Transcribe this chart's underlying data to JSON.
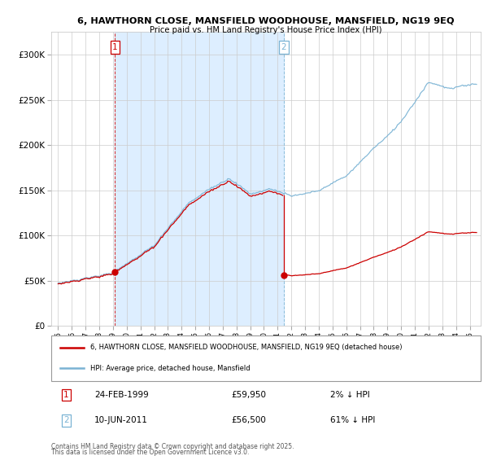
{
  "title1": "6, HAWTHORN CLOSE, MANSFIELD WOODHOUSE, MANSFIELD, NG19 9EQ",
  "title2": "Price paid vs. HM Land Registry's House Price Index (HPI)",
  "legend_line1": "6, HAWTHORN CLOSE, MANSFIELD WOODHOUSE, MANSFIELD, NG19 9EQ (detached house)",
  "legend_line2": "HPI: Average price, detached house, Mansfield",
  "sale1_date": "24-FEB-1999",
  "sale1_price": 59950,
  "sale1_pct": "2% ↓ HPI",
  "sale2_date": "10-JUN-2011",
  "sale2_price": 56500,
  "sale2_pct": "61% ↓ HPI",
  "footnote1": "Contains HM Land Registry data © Crown copyright and database right 2025.",
  "footnote2": "This data is licensed under the Open Government Licence v3.0.",
  "hpi_color": "#7ab3d4",
  "price_color": "#cc0000",
  "sale1_x": 1999.15,
  "sale2_x": 2011.44,
  "shade_color": "#ddeeff",
  "ylim_max": 325000,
  "xlim_min": 1994.5,
  "xlim_max": 2025.8
}
